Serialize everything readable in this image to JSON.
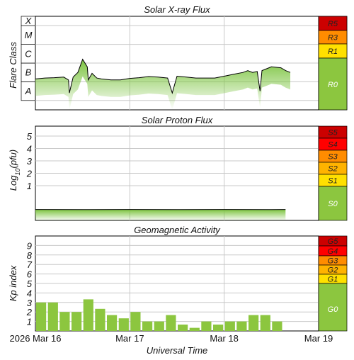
{
  "colors": {
    "bar_green": "#8cc63f",
    "fill_green": "#8fd04a",
    "extreme": "#cc0000",
    "severe": "#ff0000",
    "strong": "#ff8c00",
    "moderate": "#ffb300",
    "minor": "#ffe000",
    "quiet": "#8cc63f",
    "grid": "#c8c8c8",
    "frame": "#000000"
  },
  "x_axis": {
    "label": "Universal Time",
    "ticks": [
      "2026 Mar 16",
      "Mar 17",
      "Mar 18",
      "Mar 19"
    ]
  },
  "chart_data": [
    {
      "type": "area",
      "title": "Solar X-ray Flux",
      "ylabel": "Flare Class",
      "y_ticks": [
        "A",
        "B",
        "C",
        "M",
        "X"
      ],
      "ylim": [
        -8.5,
        -3.5
      ],
      "y_scale": "log10 flux (W/m²)",
      "x_unit": "days from 2026 Mar 16 00:00 UT",
      "xlim": [
        0,
        3
      ],
      "grid": true,
      "series": [
        {
          "x": [
            0,
            0.1,
            0.2,
            0.3,
            0.35,
            0.36,
            0.4,
            0.45,
            0.5,
            0.55,
            0.56,
            0.6,
            0.65,
            0.7,
            0.8,
            0.9,
            1.0,
            1.1,
            1.2,
            1.3,
            1.4,
            1.45,
            1.5,
            1.6,
            1.7,
            1.8,
            1.9,
            2.0,
            2.1,
            2.2,
            2.25,
            2.3,
            2.35,
            2.38,
            2.4,
            2.5,
            2.6,
            2.65,
            2.7
          ],
          "y": [
            -6.85,
            -6.8,
            -6.78,
            -6.75,
            -6.9,
            -7.6,
            -6.75,
            -6.5,
            -5.8,
            -6.2,
            -6.9,
            -6.55,
            -6.8,
            -6.85,
            -6.9,
            -6.9,
            -6.82,
            -6.78,
            -6.72,
            -6.75,
            -6.8,
            -7.6,
            -6.7,
            -6.75,
            -6.8,
            -6.8,
            -6.8,
            -6.7,
            -6.6,
            -6.5,
            -6.4,
            -6.5,
            -6.45,
            -7.5,
            -6.4,
            -6.2,
            -6.25,
            -6.4,
            -6.5
          ]
        }
      ]
    },
    {
      "type": "area",
      "title": "Solar Proton Flux",
      "ylabel": "Log10(pfu)",
      "y_ticks": [
        "1",
        "2",
        "3",
        "4",
        "5"
      ],
      "ylim": [
        -1.8,
        5.8
      ],
      "x_unit": "days from 2026 Mar 16 00:00 UT",
      "xlim": [
        0,
        3
      ],
      "grid": true,
      "series": [
        {
          "x": [
            0,
            0.5,
            1.0,
            1.5,
            2.0,
            2.5,
            2.65
          ],
          "y": [
            -0.92,
            -0.93,
            -0.92,
            -0.93,
            -0.92,
            -0.93,
            -0.92
          ]
        }
      ]
    },
    {
      "type": "bar",
      "title": "Geomagnetic Activity",
      "ylabel": "Kp index",
      "y_ticks": [
        "1",
        "2",
        "3",
        "4",
        "5",
        "6",
        "7",
        "8",
        "9"
      ],
      "ylim": [
        0,
        10
      ],
      "x_unit": "3-hour intervals starting 2026 Mar 16 00:00 UT",
      "grid": true,
      "values": [
        3.0,
        3.0,
        2.0,
        2.0,
        3.33,
        2.33,
        1.67,
        1.33,
        2.0,
        1.0,
        1.0,
        1.67,
        0.67,
        0.33,
        1.0,
        0.67,
        1.0,
        1.0,
        1.67,
        1.67,
        1.0
      ]
    }
  ],
  "scales": {
    "xray": [
      {
        "label": "R5",
        "color": "#cc0000"
      },
      {
        "label": "R3",
        "color": "#ff8c00"
      },
      {
        "label": "R1",
        "color": "#ffe000"
      },
      {
        "label": "R0",
        "color": "#8cc63f"
      }
    ],
    "proton": [
      {
        "label": "S5",
        "color": "#cc0000"
      },
      {
        "label": "S4",
        "color": "#ff0000"
      },
      {
        "label": "S3",
        "color": "#ff8c00"
      },
      {
        "label": "S2",
        "color": "#ffb300"
      },
      {
        "label": "S1",
        "color": "#ffe000"
      },
      {
        "label": "S0",
        "color": "#8cc63f"
      }
    ],
    "geomag": [
      {
        "label": "G5",
        "color": "#cc0000"
      },
      {
        "label": "G4",
        "color": "#ff0000"
      },
      {
        "label": "G3",
        "color": "#ff8c00"
      },
      {
        "label": "G2",
        "color": "#ffb300"
      },
      {
        "label": "G1",
        "color": "#ffe000"
      },
      {
        "label": "G0",
        "color": "#8cc63f"
      }
    ]
  }
}
